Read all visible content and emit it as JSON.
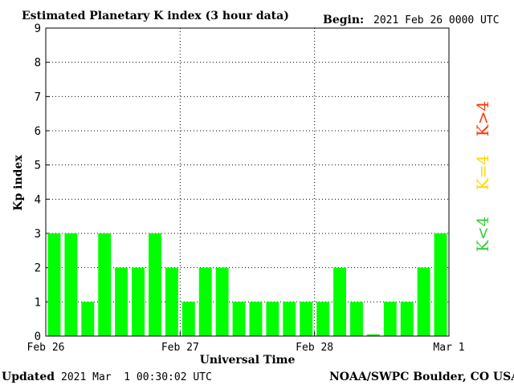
{
  "header": {
    "title": "Estimated Planetary K index (3 hour data)",
    "begin_label": "Begin:",
    "begin_value": "2021 Feb 26 0000 UTC"
  },
  "footer": {
    "updated_label": "Updated",
    "updated_value": "2021 Mar  1 00:30:02 UTC",
    "credit": "NOAA/SWPC Boulder, CO USA"
  },
  "legend": {
    "high": "K>4",
    "mid": "K=4",
    "low": "K<4"
  },
  "colors": {
    "bar_low": "#00ff00",
    "level_mid": "#ffd700",
    "level_high": "#ff3300",
    "grid": "#000000"
  },
  "chart_data": {
    "type": "bar",
    "title": "Estimated Planetary K index (3 hour data)",
    "xlabel": "Universal Time",
    "ylabel": "Kp index",
    "ylim": [
      0,
      9
    ],
    "yticks": [
      "0",
      "1",
      "2",
      "3",
      "4",
      "5",
      "6",
      "7",
      "8",
      "9"
    ],
    "xticks": [
      "Feb 26",
      "Feb 27",
      "Feb 28",
      "Mar 1"
    ],
    "grid": true,
    "categories": [
      "Feb 26 00",
      "Feb 26 03",
      "Feb 26 06",
      "Feb 26 09",
      "Feb 26 12",
      "Feb 26 15",
      "Feb 26 18",
      "Feb 26 21",
      "Feb 27 00",
      "Feb 27 03",
      "Feb 27 06",
      "Feb 27 09",
      "Feb 27 12",
      "Feb 27 15",
      "Feb 27 18",
      "Feb 27 21",
      "Feb 28 00",
      "Feb 28 03",
      "Feb 28 06",
      "Feb 28 09",
      "Feb 28 12",
      "Feb 28 15",
      "Feb 28 18",
      "Feb 28 21"
    ],
    "values": [
      3,
      3,
      1,
      3,
      2,
      2,
      3,
      2,
      1,
      2,
      2,
      1,
      1,
      1,
      1,
      1,
      1,
      2,
      1,
      0.05,
      1,
      1,
      2,
      3
    ]
  }
}
